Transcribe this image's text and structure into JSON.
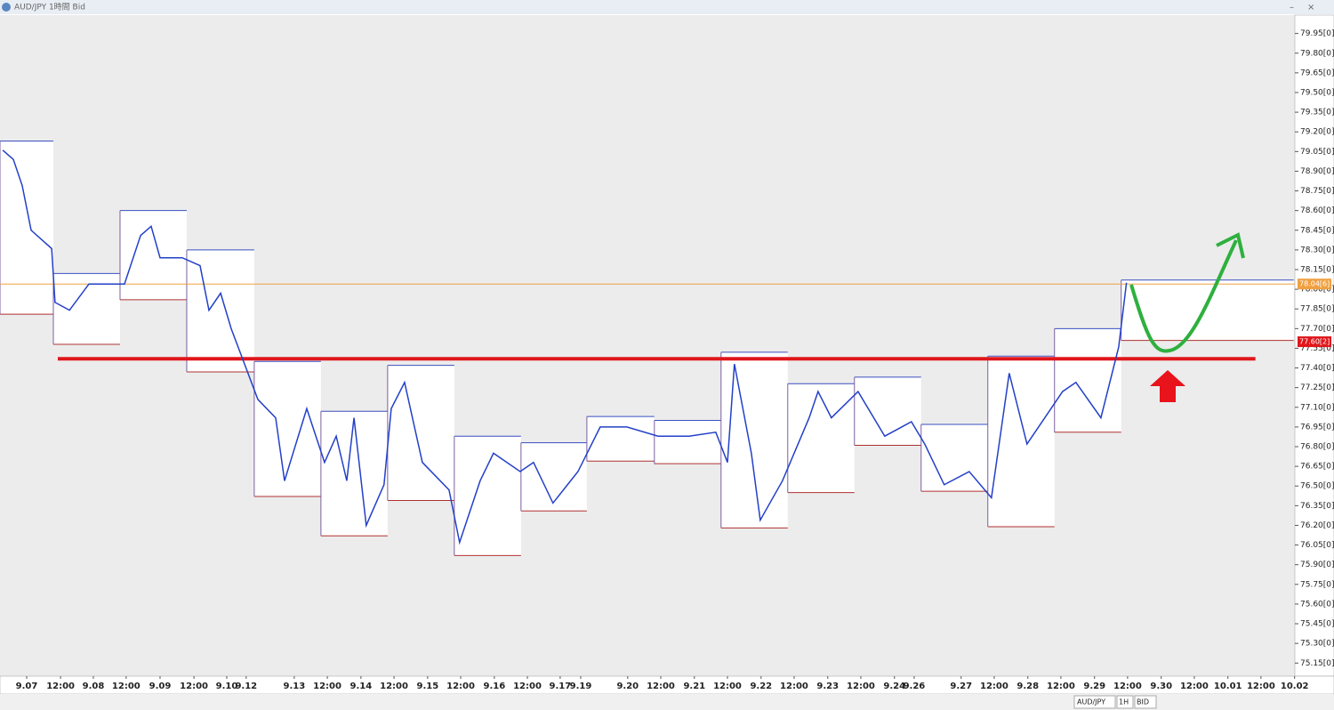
{
  "window": {
    "title": "AUD/JPY 1時間 Bid"
  },
  "chart_data": {
    "type": "line",
    "x": [
      1,
      4.8,
      8,
      11.2,
      18.6,
      19.8,
      25,
      32,
      44.8,
      50.6,
      54.4,
      57.6,
      65.6,
      72,
      75.2,
      79.4,
      83.2,
      88,
      92.8,
      99.2,
      102.4,
      110.4,
      116.8,
      121,
      124.8,
      127.4,
      131.8,
      138.2,
      140.8,
      145.6,
      152,
      161.6,
      165.4,
      172.8,
      177.6,
      187.2,
      192,
      199,
      208,
      216,
      225.6,
      236.8,
      248,
      257.6,
      261.8,
      264.3,
      270.4,
      273.6,
      281.6,
      291.2,
      294.4,
      299.2,
      308.8,
      318.4,
      328,
      332.8,
      339.8,
      348.8,
      356.8,
      363.2,
      369.6,
      382.4,
      387.2,
      396.2,
      402.6,
      405.4
    ],
    "series": [
      {
        "name": "AUD/JPY",
        "color": "#2340c8",
        "values": [
          79.06,
          78.99,
          78.79,
          78.45,
          78.31,
          77.9,
          77.84,
          78.04,
          78.04,
          78.41,
          78.48,
          78.24,
          78.24,
          78.18,
          77.84,
          77.97,
          77.7,
          77.43,
          77.16,
          77.02,
          76.54,
          77.09,
          76.68,
          76.88,
          76.54,
          77.02,
          76.2,
          76.51,
          77.09,
          77.29,
          76.68,
          76.47,
          76.07,
          76.54,
          76.75,
          76.61,
          76.68,
          76.37,
          76.61,
          76.95,
          76.95,
          76.88,
          76.88,
          76.91,
          76.68,
          77.43,
          76.75,
          76.24,
          76.54,
          77.02,
          77.22,
          77.02,
          77.22,
          76.88,
          76.99,
          76.82,
          76.51,
          76.61,
          76.41,
          77.36,
          76.82,
          77.22,
          77.29,
          77.02,
          77.56,
          78.05
        ]
      }
    ],
    "range_boxes": {
      "x": [
        0,
        19.2,
        43.2,
        67.2,
        91.5,
        115.5,
        139.5,
        163.5,
        187.5,
        211.2,
        235.5,
        259.5,
        283.5,
        307.5,
        331.5,
        355.5,
        379.5,
        403.5,
        465.6
      ],
      "highs": [
        79.13,
        78.12,
        78.6,
        78.3,
        77.45,
        77.07,
        77.42,
        76.88,
        76.83,
        77.03,
        77.0,
        77.52,
        77.28,
        77.33,
        76.97,
        77.49,
        77.7,
        78.07
      ],
      "lows": [
        77.81,
        77.58,
        77.92,
        77.37,
        76.42,
        76.12,
        76.39,
        75.97,
        76.31,
        76.69,
        76.67,
        76.18,
        76.45,
        76.81,
        76.46,
        76.19,
        76.91,
        77.61
      ]
    },
    "support_line": {
      "value": 77.47,
      "x": [
        20.8,
        451.8
      ],
      "color": "#e0161b"
    },
    "price_markers": [
      {
        "value": 78.04,
        "label": "78.04[6]",
        "color": "#f0a040"
      },
      {
        "value": 77.6,
        "label": "77.60[2]",
        "color": "#e0161b"
      }
    ],
    "xlim": [
      0,
      466
    ],
    "ylim": [
      75.05,
      80.09
    ],
    "xticks": [
      {
        "value": 9.6,
        "label": "9.07"
      },
      {
        "value": 21.8,
        "label": "12:00"
      },
      {
        "value": 33.6,
        "label": "9.08"
      },
      {
        "value": 45.4,
        "label": "12:00"
      },
      {
        "value": 57.6,
        "label": "9.09"
      },
      {
        "value": 69.8,
        "label": "12:00"
      },
      {
        "value": 81.6,
        "label": "9.10"
      },
      {
        "value": 88.6,
        "label": "9.12"
      },
      {
        "value": 105.9,
        "label": "9.13"
      },
      {
        "value": 117.8,
        "label": "12:00"
      },
      {
        "value": 129.9,
        "label": "9.14"
      },
      {
        "value": 141.8,
        "label": "12:00"
      },
      {
        "value": 153.9,
        "label": "9.15"
      },
      {
        "value": 165.8,
        "label": "12:00"
      },
      {
        "value": 177.9,
        "label": "9.16"
      },
      {
        "value": 189.8,
        "label": "12:00"
      },
      {
        "value": 201.6,
        "label": "9.17"
      },
      {
        "value": 209,
        "label": "9.19"
      },
      {
        "value": 225.9,
        "label": "9.20"
      },
      {
        "value": 237.8,
        "label": "12:00"
      },
      {
        "value": 249.9,
        "label": "9.21"
      },
      {
        "value": 261.8,
        "label": "12:00"
      },
      {
        "value": 273.9,
        "label": "9.22"
      },
      {
        "value": 285.8,
        "label": "12:00"
      },
      {
        "value": 297.9,
        "label": "9.23"
      },
      {
        "value": 309.8,
        "label": "12:00"
      },
      {
        "value": 321.9,
        "label": "9.24"
      },
      {
        "value": 329,
        "label": "9.26"
      },
      {
        "value": 345.9,
        "label": "9.27"
      },
      {
        "value": 357.8,
        "label": "12:00"
      },
      {
        "value": 369.9,
        "label": "9.28"
      },
      {
        "value": 381.8,
        "label": "12:00"
      },
      {
        "value": 393.9,
        "label": "9.29"
      },
      {
        "value": 405.8,
        "label": "12:00"
      },
      {
        "value": 417.9,
        "label": "9.30"
      },
      {
        "value": 429.8,
        "label": "12:00"
      },
      {
        "value": 441.9,
        "label": "10.01"
      },
      {
        "value": 453.8,
        "label": "12:00"
      },
      {
        "value": 465.9,
        "label": "10.02"
      }
    ],
    "yticks": [
      {
        "value": 79.95,
        "label": "79.95[0]"
      },
      {
        "value": 79.8,
        "label": "79.80[0]"
      },
      {
        "value": 79.65,
        "label": "79.65[0]"
      },
      {
        "value": 79.5,
        "label": "79.50[0]"
      },
      {
        "value": 79.35,
        "label": "79.35[0]"
      },
      {
        "value": 79.2,
        "label": "79.20[0]"
      },
      {
        "value": 79.05,
        "label": "79.05[0]"
      },
      {
        "value": 78.9,
        "label": "78.90[0]"
      },
      {
        "value": 78.75,
        "label": "78.75[0]"
      },
      {
        "value": 78.6,
        "label": "78.60[0]"
      },
      {
        "value": 78.45,
        "label": "78.45[0]"
      },
      {
        "value": 78.3,
        "label": "78.30[0]"
      },
      {
        "value": 78.15,
        "label": "78.15[0]"
      },
      {
        "value": 78.0,
        "label": "78.00[0]"
      },
      {
        "value": 77.85,
        "label": "77.85[0]"
      },
      {
        "value": 77.7,
        "label": "77.70[0]"
      },
      {
        "value": 77.55,
        "label": "77.55[0]"
      },
      {
        "value": 77.4,
        "label": "77.40[0]"
      },
      {
        "value": 77.25,
        "label": "77.25[0]"
      },
      {
        "value": 77.1,
        "label": "77.10[0]"
      },
      {
        "value": 76.95,
        "label": "76.95[0]"
      },
      {
        "value": 76.8,
        "label": "76.80[0]"
      },
      {
        "value": 76.65,
        "label": "76.65[0]"
      },
      {
        "value": 76.5,
        "label": "76.50[0]"
      },
      {
        "value": 76.35,
        "label": "76.35[0]"
      },
      {
        "value": 76.2,
        "label": "76.20[0]"
      },
      {
        "value": 76.05,
        "label": "76.05[0]"
      },
      {
        "value": 75.9,
        "label": "75.90[0]"
      },
      {
        "value": 75.75,
        "label": "75.75[0]"
      },
      {
        "value": 75.6,
        "label": "75.60[0]"
      },
      {
        "value": 75.45,
        "label": "75.45[0]"
      },
      {
        "value": 75.3,
        "label": "75.30[0]"
      },
      {
        "value": 75.15,
        "label": "75.15[0]"
      }
    ]
  },
  "toolbar": {
    "symbol": "AUD/JPY",
    "timeframe": "1H",
    "price_type": "BID"
  }
}
